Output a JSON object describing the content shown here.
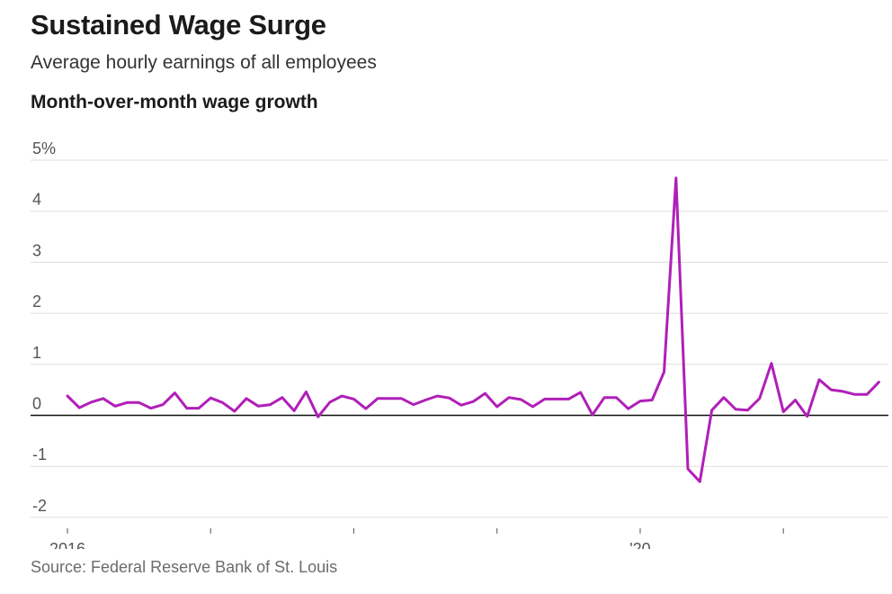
{
  "header": {
    "title": "Sustained Wage Surge",
    "subtitle": "Average hourly earnings of all employees",
    "chart_heading": "Month-over-month wage growth"
  },
  "footer": {
    "source": "Source: Federal Reserve Bank of St. Louis"
  },
  "colors": {
    "line": "#b01fb8",
    "zero_line": "#111111",
    "grid": "#dddddd",
    "axis_text": "#555555"
  },
  "chart_data": {
    "type": "line",
    "title": "Month-over-month wage growth",
    "xlabel": "",
    "ylabel": "",
    "y_unit": "%",
    "ylim": [
      -2,
      5
    ],
    "y_ticks": [
      5,
      4,
      3,
      2,
      1,
      0,
      -1,
      -2
    ],
    "y_tick_labels": [
      "5%",
      "4",
      "3",
      "2",
      "1",
      "0",
      "-1",
      "-2"
    ],
    "x_start": "2016-01",
    "x_ticks": [
      "2016-01",
      "2017-01",
      "2018-01",
      "2019-01",
      "2020-01",
      "2021-01"
    ],
    "x_tick_labels": [
      "2016",
      "",
      "",
      "",
      "'20",
      ""
    ],
    "grid": true,
    "legend": "none",
    "series": [
      {
        "values": [
          0.38,
          0.15,
          0.26,
          0.33,
          0.18,
          0.25,
          0.25,
          0.14,
          0.21,
          0.44,
          0.14,
          0.14,
          0.34,
          0.25,
          0.08,
          0.33,
          0.18,
          0.21,
          0.35,
          0.09,
          0.46,
          -0.03,
          0.26,
          0.38,
          0.32,
          0.13,
          0.33,
          0.33,
          0.33,
          0.21,
          0.3,
          0.38,
          0.34,
          0.2,
          0.27,
          0.43,
          0.17,
          0.35,
          0.31,
          0.17,
          0.32,
          0.32,
          0.32,
          0.45,
          0.01,
          0.35,
          0.35,
          0.13,
          0.28,
          0.3,
          0.85,
          4.65,
          -1.05,
          -1.3,
          0.1,
          0.35,
          0.12,
          0.1,
          0.33,
          1.02,
          0.07,
          0.3,
          -0.02,
          0.7,
          0.5,
          0.47,
          0.41,
          0.41,
          0.65
        ]
      }
    ]
  }
}
